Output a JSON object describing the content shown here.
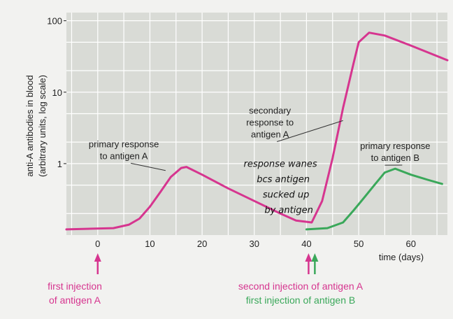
{
  "chart_data": {
    "type": "line",
    "title": "",
    "xlabel": "time (days)",
    "ylabel": "anti-A antibodies in blood",
    "ylabel_sub": "(arbitrary units, log scale)",
    "x_ticks": [
      0,
      10,
      20,
      30,
      40,
      50,
      60
    ],
    "y_ticks": [
      {
        "value": 1,
        "label": "1"
      },
      {
        "value": 10,
        "label": "10"
      },
      {
        "value": 100,
        "label": "100"
      }
    ],
    "xlim": [
      -6,
      67
    ],
    "ylim": [
      0.1,
      130
    ],
    "y_scale": "log",
    "grid": true,
    "series": [
      {
        "color": "#d6358f",
        "points": [
          [
            -6,
            0.12
          ],
          [
            3,
            0.125
          ],
          [
            6,
            0.14
          ],
          [
            8,
            0.17
          ],
          [
            10,
            0.25
          ],
          [
            12,
            0.4
          ],
          [
            14,
            0.65
          ],
          [
            16,
            0.87
          ],
          [
            17,
            0.9
          ],
          [
            20,
            0.7
          ],
          [
            25,
            0.45
          ],
          [
            30,
            0.3
          ],
          [
            35,
            0.2
          ],
          [
            38,
            0.16
          ],
          [
            41,
            0.15
          ],
          [
            43,
            0.3
          ],
          [
            45,
            1.2
          ],
          [
            47,
            6
          ],
          [
            49,
            25
          ],
          [
            50,
            50
          ],
          [
            52,
            68
          ],
          [
            55,
            62
          ],
          [
            60,
            45
          ],
          [
            67,
            28
          ]
        ]
      },
      {
        "color": "#3aa85a",
        "points": [
          [
            40,
            0.12
          ],
          [
            44,
            0.125
          ],
          [
            47,
            0.15
          ],
          [
            49,
            0.22
          ],
          [
            51,
            0.33
          ],
          [
            53,
            0.5
          ],
          [
            55,
            0.75
          ],
          [
            57,
            0.85
          ],
          [
            60,
            0.7
          ],
          [
            63,
            0.6
          ],
          [
            66,
            0.52
          ]
        ]
      }
    ],
    "annotations": [
      {
        "id": "primary-a",
        "lines": [
          "primary response",
          "to antigen A"
        ],
        "at": [
          5,
          1.7
        ],
        "pointer_to": [
          13,
          0.8
        ]
      },
      {
        "id": "secondary-a",
        "lines": [
          "secondary",
          "response to",
          "antigen A"
        ],
        "at": [
          33,
          5
        ],
        "pointer_to": [
          47,
          4
        ]
      },
      {
        "id": "primary-b",
        "lines": [
          "primary response",
          "to antigen B"
        ],
        "at": [
          57,
          1.6
        ],
        "pointer_to": [
          55,
          0.95
        ]
      }
    ],
    "handwritten_note": {
      "lines": [
        "response wanes",
        "bcs antigen",
        "sucked up",
        "by antigen"
      ],
      "at": [
        35,
        0.9
      ]
    },
    "arrows": [
      {
        "x": 0,
        "color": "#d6358f"
      },
      {
        "x": 40.4,
        "color": "#d6358f"
      },
      {
        "x": 41.6,
        "color": "#3aa85a"
      }
    ]
  },
  "labels": {
    "first_injection_a_line1": "first injection",
    "first_injection_a_line2": "of antigen A",
    "second_injection_a": "second injection of antigen A",
    "first_injection_b": "first injection of antigen B"
  },
  "colors": {
    "magenta": "#d6358f",
    "green": "#3aa85a",
    "plot_bg": "#d9dbd6",
    "grid": "#ffffff"
  }
}
